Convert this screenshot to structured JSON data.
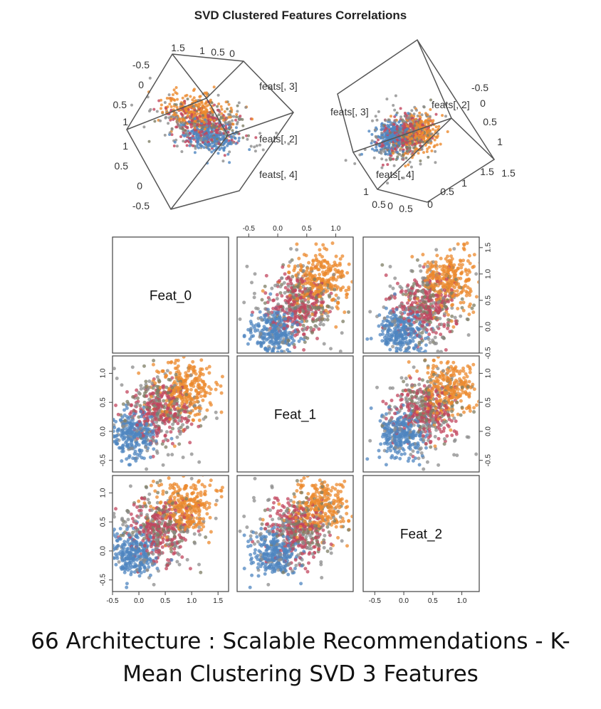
{
  "title": "SVD Clustered Features Correlations",
  "caption_line1": "66 Architecture : Scalable Recommendations - K-",
  "caption_line2": "Mean Clustering SVD 3 Features",
  "colors": {
    "cluster_blue": "#4f86c0",
    "cluster_orange": "#ec8a2d",
    "cluster_red": "#c2455e",
    "cluster_gray": "#8c8c8c",
    "cluster_olive": "#7d7d64"
  },
  "chart_data": [
    {
      "type": "scatter3d",
      "panel": "left-3d",
      "axis_labels": [
        "feats[, 3]",
        "feats[, 2]",
        "feats[, 4]"
      ],
      "tick_labels_left": [
        "-0.5",
        "0",
        "0.5",
        "1",
        "1",
        "0.5",
        "0",
        "-0.5"
      ],
      "tick_labels_top": [
        "1.5",
        "1",
        "0.5",
        "0"
      ]
    },
    {
      "type": "scatter3d",
      "panel": "right-3d",
      "axis_labels": [
        "feats[, 3]",
        "feats[, 2]",
        "feats[, 4]"
      ],
      "tick_labels_right": [
        "-0.5",
        "0",
        "0.5",
        "1",
        "1.5"
      ],
      "tick_labels_bottom": [
        "1",
        "0.5",
        "0",
        "0.5",
        "0",
        "0.5",
        "1",
        "1.5"
      ]
    },
    {
      "type": "scatter_matrix",
      "variables": [
        "Feat_0",
        "Feat_1",
        "Feat_2"
      ],
      "ticks": {
        "Feat_0": [
          "-0.5",
          "0.0",
          "0.5",
          "1.0",
          "1.5"
        ],
        "Feat_1": [
          "-0.5",
          "0.0",
          "0.5",
          "1.0"
        ],
        "Feat_2": [
          "-0.5",
          "0.0",
          "0.5",
          "1.0"
        ]
      },
      "top_axis_ticks": [
        "-0.5",
        "0.0",
        "0.5",
        "1.0"
      ],
      "right_axis_ticks": [
        "-0.5",
        "0.0",
        "0.5",
        "1.0",
        "1.5"
      ],
      "ranges": {
        "Feat_0": [
          -0.5,
          1.7
        ],
        "Feat_1": [
          -0.7,
          1.3
        ],
        "Feat_2": [
          -0.7,
          1.3
        ]
      },
      "clusters": [
        {
          "color_key": "cluster_blue",
          "center": [
            -0.1,
            -0.05,
            -0.05
          ],
          "spread": [
            0.22,
            0.2,
            0.2
          ],
          "count": 260
        },
        {
          "color_key": "cluster_orange",
          "center": [
            0.85,
            0.75,
            0.75
          ],
          "spread": [
            0.3,
            0.25,
            0.25
          ],
          "count": 260
        },
        {
          "color_key": "cluster_red",
          "center": [
            0.4,
            0.35,
            0.35
          ],
          "spread": [
            0.28,
            0.25,
            0.25
          ],
          "count": 220
        },
        {
          "color_key": "cluster_olive",
          "center": [
            0.45,
            0.45,
            0.45
          ],
          "spread": [
            0.3,
            0.28,
            0.28
          ],
          "count": 120
        },
        {
          "color_key": "cluster_gray",
          "center": [
            0.3,
            0.2,
            0.25
          ],
          "spread": [
            0.45,
            0.4,
            0.4
          ],
          "count": 140
        }
      ]
    }
  ]
}
